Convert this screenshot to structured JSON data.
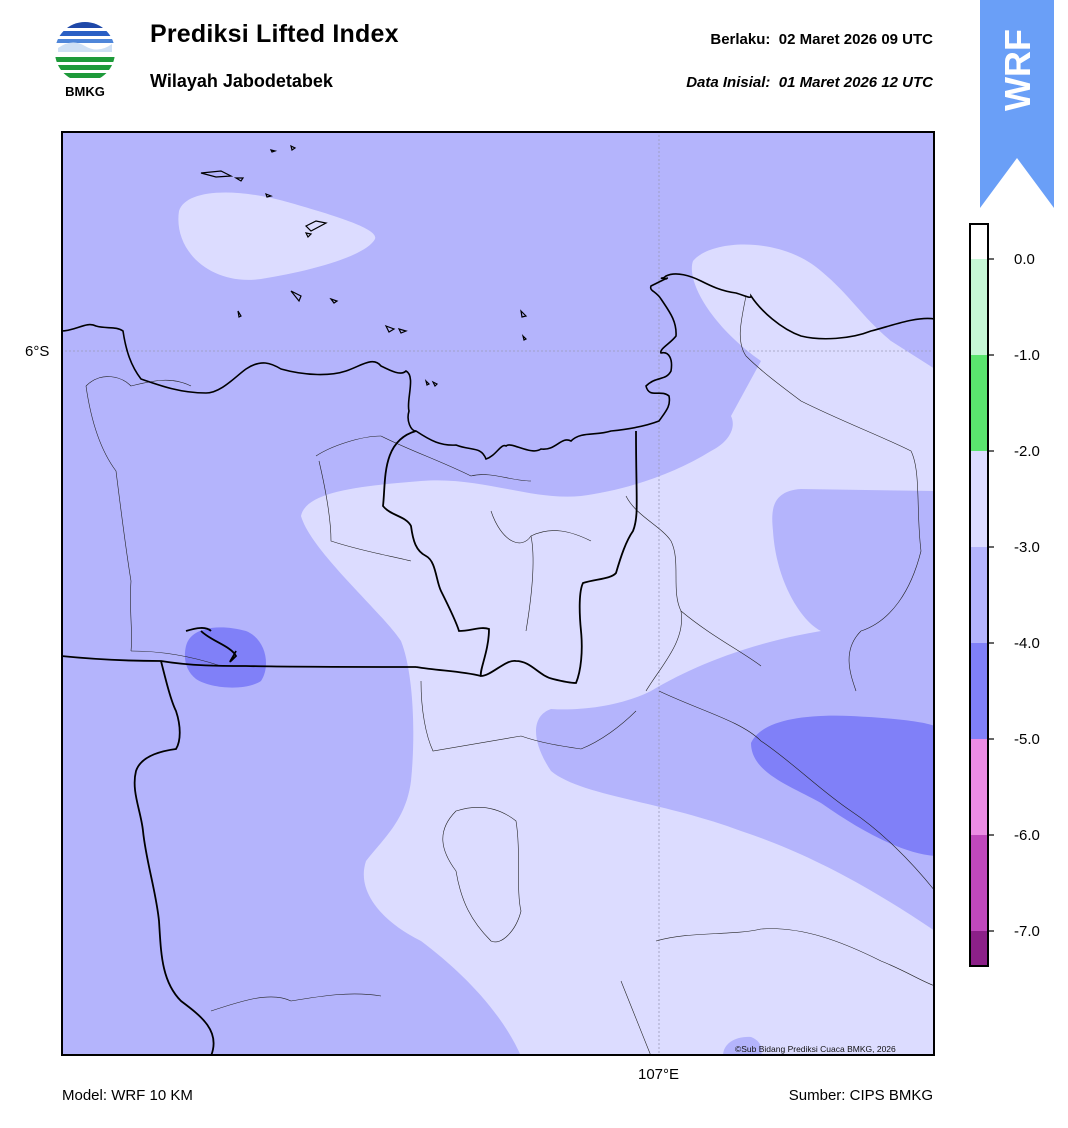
{
  "header": {
    "title": "Prediksi Lifted Index",
    "subtitle": "Wilayah Jabodetabek",
    "valid_label": "Berlaku:",
    "valid_time": "02 Maret 2026 09 UTC",
    "init_label": "Data Inisial:",
    "init_time": "01 Maret 2026 12 UTC"
  },
  "logo": {
    "text": "BMKG",
    "icon": "bmkg-logo-icon"
  },
  "ribbon": {
    "text": "WRF",
    "color": "#6a9ff7"
  },
  "map": {
    "lat_label": "6°S",
    "lon_label": "107°E",
    "credit": "©Sub Bidang Prediksi Cuaca BMKG, 2026",
    "fills": {
      "level_-2_-3": "#dcdcff",
      "level_-3_-4": "#b4b4fc",
      "level_-4_-5": "#8080f8"
    },
    "coast_color": "#000000",
    "border_color": "#000000"
  },
  "colorbar": {
    "ticks": [
      "0.0",
      "-1.0",
      "-2.0",
      "-3.0",
      "-4.0",
      "-5.0",
      "-6.0",
      "-7.0"
    ],
    "levels": [
      {
        "range": "above 0.0",
        "color": "#ffffff"
      },
      {
        "range": "0.0 to -1.0",
        "color": "#c6f7d6"
      },
      {
        "range": "-1.0 to -2.0",
        "color": "#5ae46e"
      },
      {
        "range": "-2.0 to -3.0",
        "color": "#dcdcff"
      },
      {
        "range": "-3.0 to -4.0",
        "color": "#b4b4fc"
      },
      {
        "range": "-4.0 to -5.0",
        "color": "#8080f8"
      },
      {
        "range": "-5.0 to -6.0",
        "color": "#ec8ce4"
      },
      {
        "range": "-6.0 to -7.0",
        "color": "#c048bc"
      },
      {
        "range": "below -7.0",
        "color": "#8c2088"
      }
    ]
  },
  "footer": {
    "model": "Model: WRF 10 KM",
    "source": "Sumber: CIPS BMKG"
  }
}
